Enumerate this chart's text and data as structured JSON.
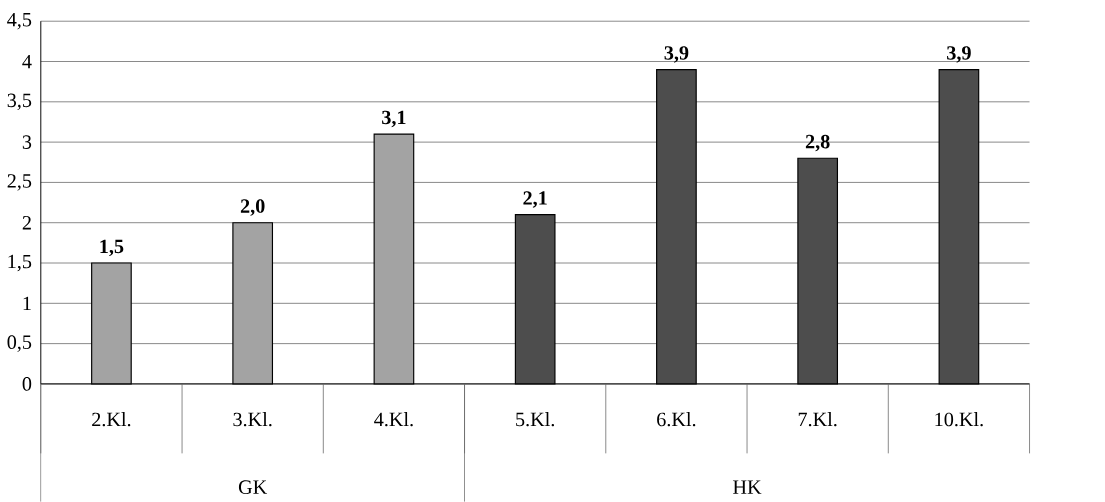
{
  "chart_data": {
    "type": "bar",
    "categories": [
      "2.Kl.",
      "3.Kl.",
      "4.Kl.",
      "5.Kl.",
      "6.Kl.",
      "7.Kl.",
      "10.Kl."
    ],
    "values": [
      1.5,
      2.0,
      3.1,
      2.1,
      3.9,
      2.8,
      3.9
    ],
    "colors": [
      "#a3a3a3",
      "#a3a3a3",
      "#a3a3a3",
      "#4d4d4d",
      "#4d4d4d",
      "#4d4d4d",
      "#4d4d4d"
    ],
    "value_labels": [
      "1,5",
      "2,0",
      "3,1",
      "2,1",
      "3,9",
      "2,8",
      "3,9"
    ],
    "ylim": [
      0,
      4.5
    ],
    "yticks": [
      0,
      {
        "value": 0.5,
        "label": "0,5"
      },
      1,
      {
        "value": 1.5,
        "label": "1,5"
      },
      2,
      {
        "value": 2.5,
        "label": "2,5"
      },
      3,
      {
        "value": 3.5,
        "label": "3,5"
      },
      4,
      {
        "value": 4.5,
        "label": "4,5"
      }
    ],
    "grid": "y",
    "annotations": [
      "GK",
      "HK"
    ]
  }
}
